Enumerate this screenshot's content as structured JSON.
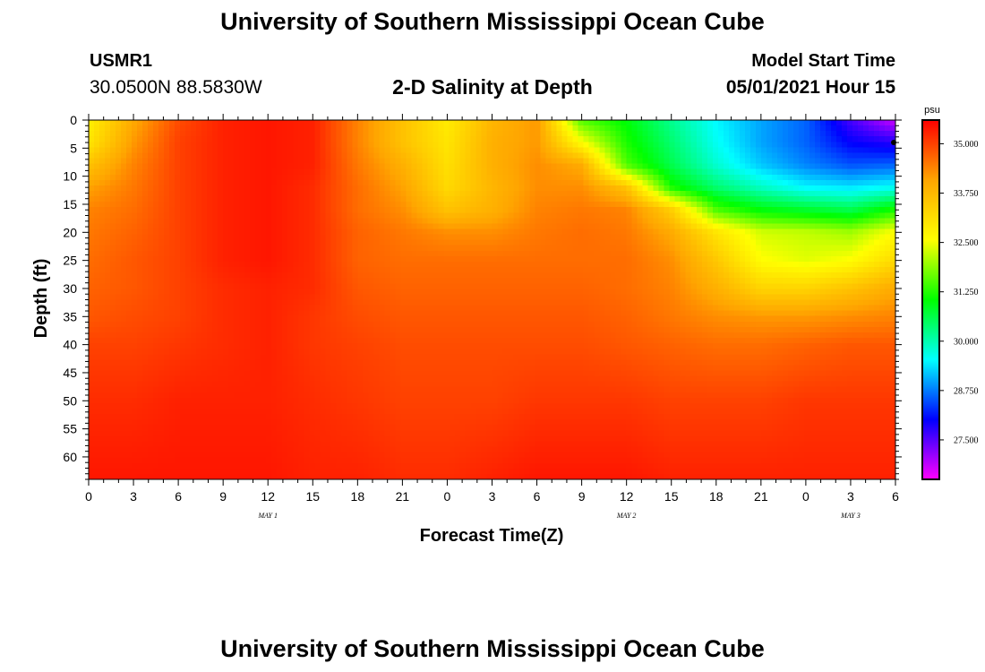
{
  "header": {
    "title": "University of Southern Mississippi Ocean Cube",
    "station_id": "USMR1",
    "coordinates": "30.0500N  88.5830W",
    "subtitle": "2-D Salinity at Depth",
    "model_start_label": "Model Start Time",
    "model_start_value": "05/01/2021 Hour 15"
  },
  "footer": {
    "title": "University of Southern Mississippi Ocean Cube"
  },
  "chart_data": {
    "type": "heatmap",
    "title": "2-D Salinity at Depth",
    "xlabel": "Forecast Time(Z)",
    "ylabel": "Depth (ft)",
    "x_tick_labels": [
      "0",
      "3",
      "6",
      "9",
      "12",
      "15",
      "18",
      "21",
      "0",
      "3",
      "6",
      "9",
      "12",
      "15",
      "18",
      "21",
      "0",
      "3",
      "6"
    ],
    "x_range_hours": [
      0,
      54
    ],
    "day_labels": [
      {
        "label": "MAY 1",
        "hour": 12
      },
      {
        "label": "MAY 2",
        "hour": 36
      },
      {
        "label": "MAY 3",
        "hour": 51
      }
    ],
    "y_tick_labels": [
      "0",
      "5",
      "10",
      "15",
      "20",
      "25",
      "30",
      "35",
      "40",
      "45",
      "50",
      "55",
      "60"
    ],
    "y_range_ft": [
      0,
      64
    ],
    "colorbar": {
      "unit": "psu",
      "min": 26.5,
      "max": 35.6,
      "ticks": [
        "35.000",
        "33.750",
        "32.500",
        "31.250",
        "30.000",
        "28.750",
        "27.500"
      ],
      "colors": [
        "#ff00ff",
        "#0000ff",
        "#00ffff",
        "#00ff00",
        "#ffff00",
        "#ffa500",
        "#ff0000"
      ]
    },
    "nodes_hours": [
      0,
      3,
      6,
      9,
      12,
      15,
      18,
      21,
      24,
      27,
      30,
      33,
      36,
      39,
      42,
      45,
      48,
      51,
      54
    ],
    "nodes_depth_ft": [
      0,
      4,
      8,
      12,
      16,
      20,
      25,
      30,
      35,
      40,
      50,
      64
    ],
    "salinity_grid": [
      [
        32.8,
        34.0,
        34.9,
        35.3,
        35.4,
        35.3,
        34.4,
        33.6,
        32.9,
        33.8,
        34.2,
        31.5,
        31.0,
        30.2,
        29.5,
        29.0,
        28.6,
        27.6,
        26.8
      ],
      [
        33.0,
        34.2,
        35.0,
        35.3,
        35.4,
        35.3,
        34.4,
        33.6,
        33.0,
        33.9,
        34.2,
        32.6,
        31.2,
        30.4,
        29.6,
        29.0,
        28.6,
        28.0,
        27.8
      ],
      [
        33.6,
        34.4,
        35.0,
        35.3,
        35.4,
        35.3,
        34.5,
        33.9,
        33.1,
        33.9,
        34.3,
        34.0,
        31.5,
        30.6,
        29.8,
        29.2,
        28.8,
        28.5,
        28.6
      ],
      [
        34.1,
        34.5,
        35.0,
        35.3,
        35.4,
        35.2,
        34.6,
        34.1,
        33.2,
        33.8,
        34.3,
        34.3,
        33.6,
        31.2,
        30.4,
        29.9,
        29.5,
        29.4,
        29.6
      ],
      [
        34.4,
        34.6,
        35.0,
        35.3,
        35.4,
        35.2,
        34.6,
        34.3,
        33.6,
        33.9,
        34.4,
        34.5,
        34.4,
        33.4,
        31.5,
        31.0,
        30.8,
        30.6,
        31.2
      ],
      [
        34.5,
        34.7,
        35.0,
        35.3,
        35.4,
        35.2,
        34.7,
        34.5,
        34.3,
        34.3,
        34.5,
        34.6,
        34.5,
        34.0,
        33.0,
        32.3,
        32.2,
        32.0,
        32.6
      ],
      [
        34.6,
        34.8,
        35.0,
        35.3,
        35.4,
        35.2,
        34.7,
        34.6,
        34.6,
        34.6,
        34.6,
        34.6,
        34.6,
        34.3,
        33.5,
        32.6,
        32.4,
        32.6,
        33.2
      ],
      [
        34.7,
        34.8,
        35.0,
        35.2,
        35.3,
        35.2,
        34.8,
        34.7,
        34.7,
        34.7,
        34.7,
        34.7,
        34.6,
        34.4,
        33.9,
        33.3,
        33.3,
        33.6,
        34.0
      ],
      [
        34.8,
        34.9,
        35.0,
        35.2,
        35.3,
        35.1,
        34.9,
        34.8,
        34.8,
        34.8,
        34.8,
        34.8,
        34.7,
        34.5,
        34.3,
        34.2,
        34.2,
        34.3,
        34.4
      ],
      [
        35.0,
        35.0,
        35.1,
        35.2,
        35.3,
        35.1,
        35.0,
        34.9,
        34.9,
        34.9,
        34.9,
        34.9,
        34.8,
        34.7,
        34.6,
        34.6,
        34.7,
        34.8,
        34.8
      ],
      [
        35.2,
        35.2,
        35.3,
        35.3,
        35.3,
        35.2,
        35.1,
        35.0,
        35.0,
        35.0,
        35.1,
        35.1,
        35.1,
        35.0,
        35.0,
        35.0,
        35.1,
        35.1,
        35.1
      ],
      [
        35.4,
        35.4,
        35.4,
        35.4,
        35.4,
        35.3,
        35.3,
        35.2,
        35.2,
        35.3,
        35.4,
        35.4,
        35.4,
        35.3,
        35.3,
        35.3,
        35.3,
        35.3,
        35.3
      ]
    ]
  }
}
